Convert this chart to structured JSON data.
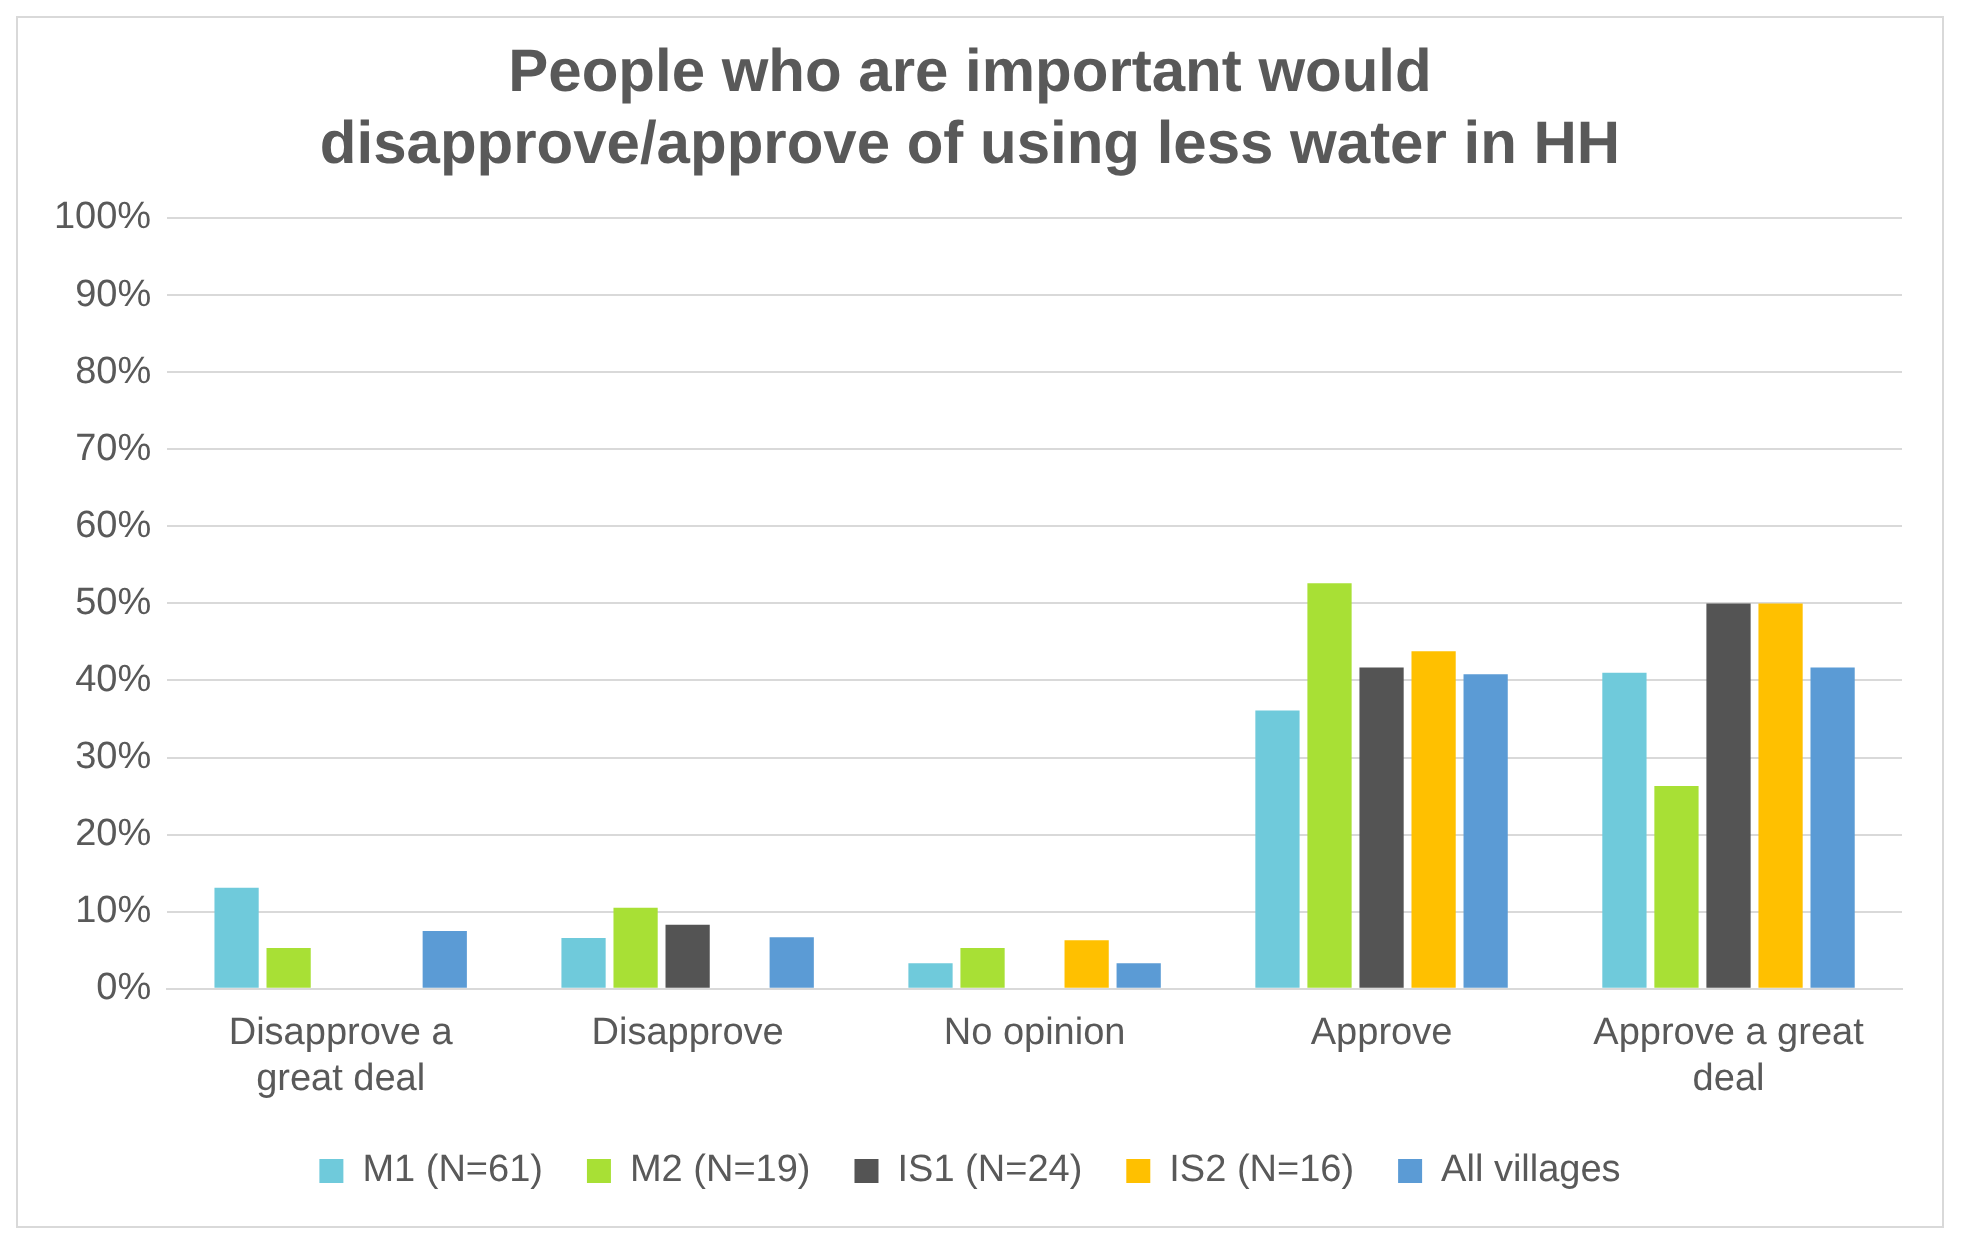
{
  "chart_data": {
    "type": "bar",
    "title": "People who are important would disapprove/approve of using less water in HH",
    "categories": [
      "Disapprove a great deal",
      "Disapprove",
      "No opinion",
      "Approve",
      "Approve a great deal"
    ],
    "series": [
      {
        "name": "M1 (N=61)",
        "color": "#6fcadb",
        "values": [
          13.1,
          6.6,
          3.3,
          36.1,
          41.0
        ]
      },
      {
        "name": "M2 (N=19)",
        "color": "#a8e035",
        "values": [
          5.3,
          10.5,
          5.3,
          52.6,
          26.3
        ]
      },
      {
        "name": "IS1 (N=24)",
        "color": "#545454",
        "values": [
          0,
          8.3,
          0,
          41.7,
          50.0
        ]
      },
      {
        "name": "IS2 (N=16)",
        "color": "#ffc000",
        "values": [
          0,
          0,
          6.3,
          43.8,
          50.0
        ]
      },
      {
        "name": "All villages",
        "color": "#5b9bd5",
        "values": [
          7.5,
          6.7,
          3.3,
          40.8,
          41.7
        ]
      }
    ],
    "ylim": [
      0,
      100
    ],
    "yticks": [
      {
        "value": 0,
        "label": "0%"
      },
      {
        "value": 10,
        "label": "10%"
      },
      {
        "value": 20,
        "label": "20%"
      },
      {
        "value": 30,
        "label": "30%"
      },
      {
        "value": 40,
        "label": "40%"
      },
      {
        "value": 50,
        "label": "50%"
      },
      {
        "value": 60,
        "label": "60%"
      },
      {
        "value": 70,
        "label": "70%"
      },
      {
        "value": 80,
        "label": "80%"
      },
      {
        "value": 90,
        "label": "90%"
      },
      {
        "value": 100,
        "label": "100%"
      }
    ],
    "grid": "y",
    "legend": "bottom"
  }
}
